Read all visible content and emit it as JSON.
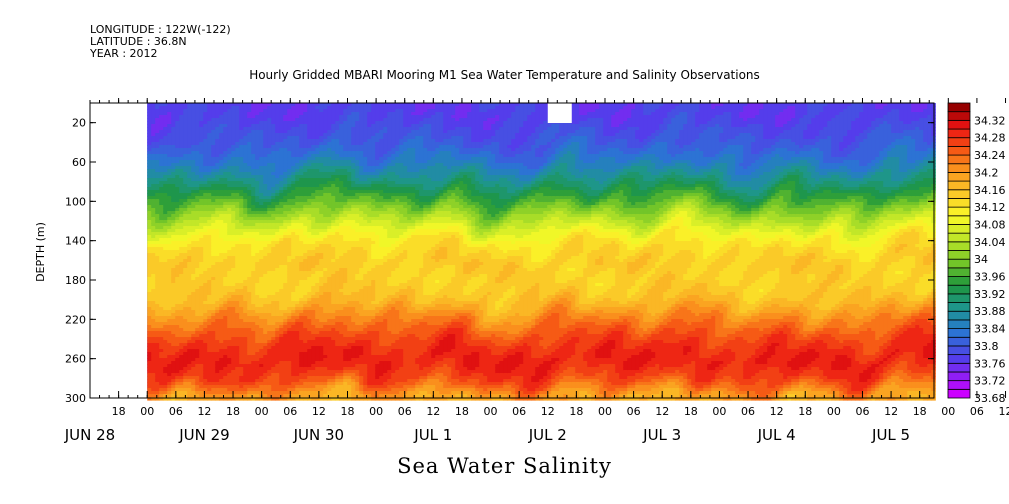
{
  "header": {
    "longitude": "LONGITUDE : 122W(-122)",
    "latitude": "LATITUDE : 36.8N",
    "year": "YEAR : 2012"
  },
  "footer": {
    "text": "Sea Water Salinity"
  },
  "chart_data": {
    "type": "heatmap",
    "title": "Hourly Gridded MBARI Mooring M1 Sea Water Temperature and Salinity Observations",
    "xlabel": "",
    "ylabel": "DEPTH (m)",
    "y_reversed": true,
    "ylim": [
      0,
      300
    ],
    "yticks": [
      20,
      60,
      100,
      140,
      180,
      220,
      260,
      300
    ],
    "xlim": [
      "2012-06-28 12:00",
      "2012-07-05 21:00"
    ],
    "hour_tick_labels": [
      "18",
      "00",
      "06",
      "12",
      "18",
      "00",
      "06",
      "12",
      "18",
      "00",
      "06",
      "12",
      "18",
      "00",
      "06",
      "12",
      "18",
      "00",
      "06",
      "12",
      "18",
      "00",
      "06",
      "12",
      "18",
      "00",
      "06",
      "12",
      "18",
      "00",
      "06",
      "12"
    ],
    "day_labels": [
      {
        "label": "JUN 28",
        "at": "2012-06-28 12:00"
      },
      {
        "label": "JUN 29",
        "at": "2012-06-29 12:00"
      },
      {
        "label": "JUN 30",
        "at": "2012-06-30 12:00"
      },
      {
        "label": "JUL  1",
        "at": "2012-07-01 12:00"
      },
      {
        "label": "JUL  2",
        "at": "2012-07-02 12:00"
      },
      {
        "label": "JUL  3",
        "at": "2012-07-03 12:00"
      },
      {
        "label": "JUL  4",
        "at": "2012-07-04 12:00"
      },
      {
        "label": "JUL  5",
        "at": "2012-07-05 12:00"
      }
    ],
    "data_start": "2012-06-29 00:00",
    "colorbar": {
      "min": 33.68,
      "max": 34.36,
      "step": 0.02,
      "tick_labels": [
        "34.32",
        "34.28",
        "34.24",
        "34.2",
        "34.16",
        "34.12",
        "34.08",
        "34.04",
        "34",
        "33.96",
        "33.92",
        "33.88",
        "33.84",
        "33.8",
        "33.76",
        "33.72",
        "33.68"
      ],
      "tick_values": [
        34.32,
        34.28,
        34.24,
        34.2,
        34.16,
        34.12,
        34.08,
        34.04,
        34.0,
        33.96,
        33.92,
        33.88,
        33.84,
        33.8,
        33.76,
        33.72,
        33.68
      ]
    },
    "depth_profile": [
      {
        "depth": 10,
        "salinity": 33.77
      },
      {
        "depth": 20,
        "salinity": 33.78
      },
      {
        "depth": 40,
        "salinity": 33.8
      },
      {
        "depth": 60,
        "salinity": 33.84
      },
      {
        "depth": 80,
        "salinity": 33.9
      },
      {
        "depth": 100,
        "salinity": 33.97
      },
      {
        "depth": 120,
        "salinity": 34.05
      },
      {
        "depth": 140,
        "salinity": 34.12
      },
      {
        "depth": 160,
        "salinity": 34.15
      },
      {
        "depth": 180,
        "salinity": 34.14
      },
      {
        "depth": 200,
        "salinity": 34.16
      },
      {
        "depth": 220,
        "salinity": 34.22
      },
      {
        "depth": 240,
        "salinity": 34.27
      },
      {
        "depth": 260,
        "salinity": 34.3
      },
      {
        "depth": 280,
        "salinity": 34.27
      },
      {
        "depth": 300,
        "salinity": 34.18
      }
    ]
  }
}
